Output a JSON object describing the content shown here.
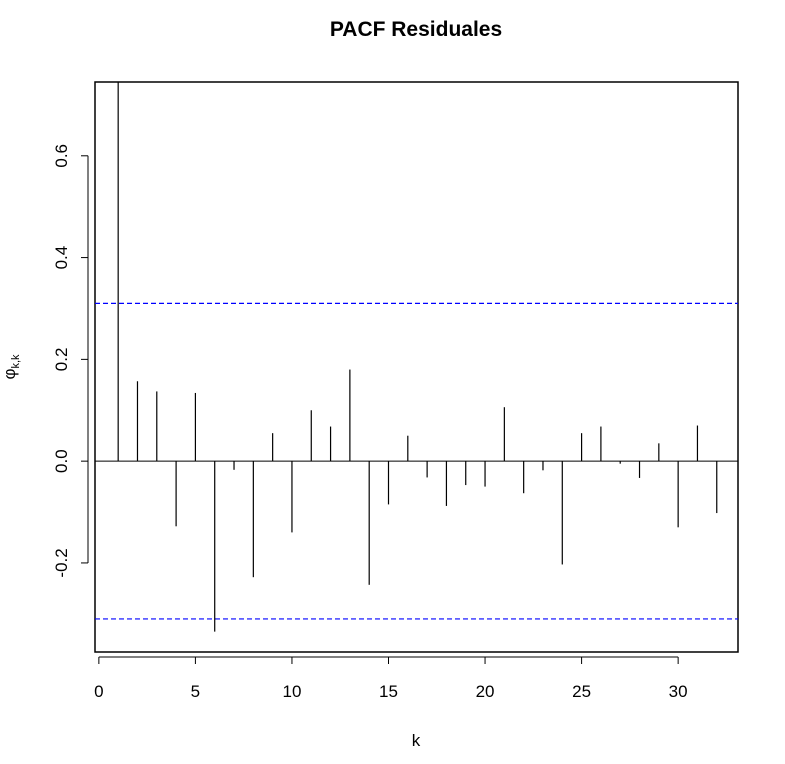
{
  "chart_data": {
    "type": "bar",
    "title": "PACF Residuales",
    "xlabel": "k",
    "ylabel_base": "φ",
    "ylabel_subscript": "k,k",
    "xlim": [
      -0.2,
      33.1
    ],
    "ylim": [
      -0.375,
      0.745
    ],
    "x_ticks": [
      0,
      5,
      10,
      15,
      20,
      25,
      30
    ],
    "x_tick_labels": [
      "0",
      "5",
      "10",
      "15",
      "20",
      "25",
      "30"
    ],
    "y_ticks": [
      -0.2,
      0.0,
      0.2,
      0.4,
      0.6
    ],
    "y_tick_labels": [
      "-0.2",
      "0.0",
      "0.2",
      "0.4",
      "0.6"
    ],
    "confidence_bound": 0.31,
    "confidence_color": "#0000ff",
    "bar_color": "#000000",
    "lags": [
      1,
      2,
      3,
      4,
      5,
      6,
      7,
      8,
      9,
      10,
      11,
      12,
      13,
      14,
      15,
      16,
      17,
      18,
      19,
      20,
      21,
      22,
      23,
      24,
      25,
      26,
      27,
      28,
      29,
      30,
      31,
      32
    ],
    "values": [
      0.745,
      0.157,
      0.137,
      -0.128,
      0.134,
      -0.335,
      -0.017,
      -0.228,
      0.055,
      -0.14,
      0.1,
      0.068,
      0.18,
      -0.243,
      -0.085,
      0.05,
      -0.032,
      -0.088,
      -0.047,
      -0.05,
      0.106,
      -0.063,
      -0.018,
      -0.203,
      0.055,
      0.068,
      -0.005,
      -0.033,
      0.035,
      -0.13,
      0.07,
      -0.102
    ],
    "grid": false,
    "legend": "none"
  }
}
